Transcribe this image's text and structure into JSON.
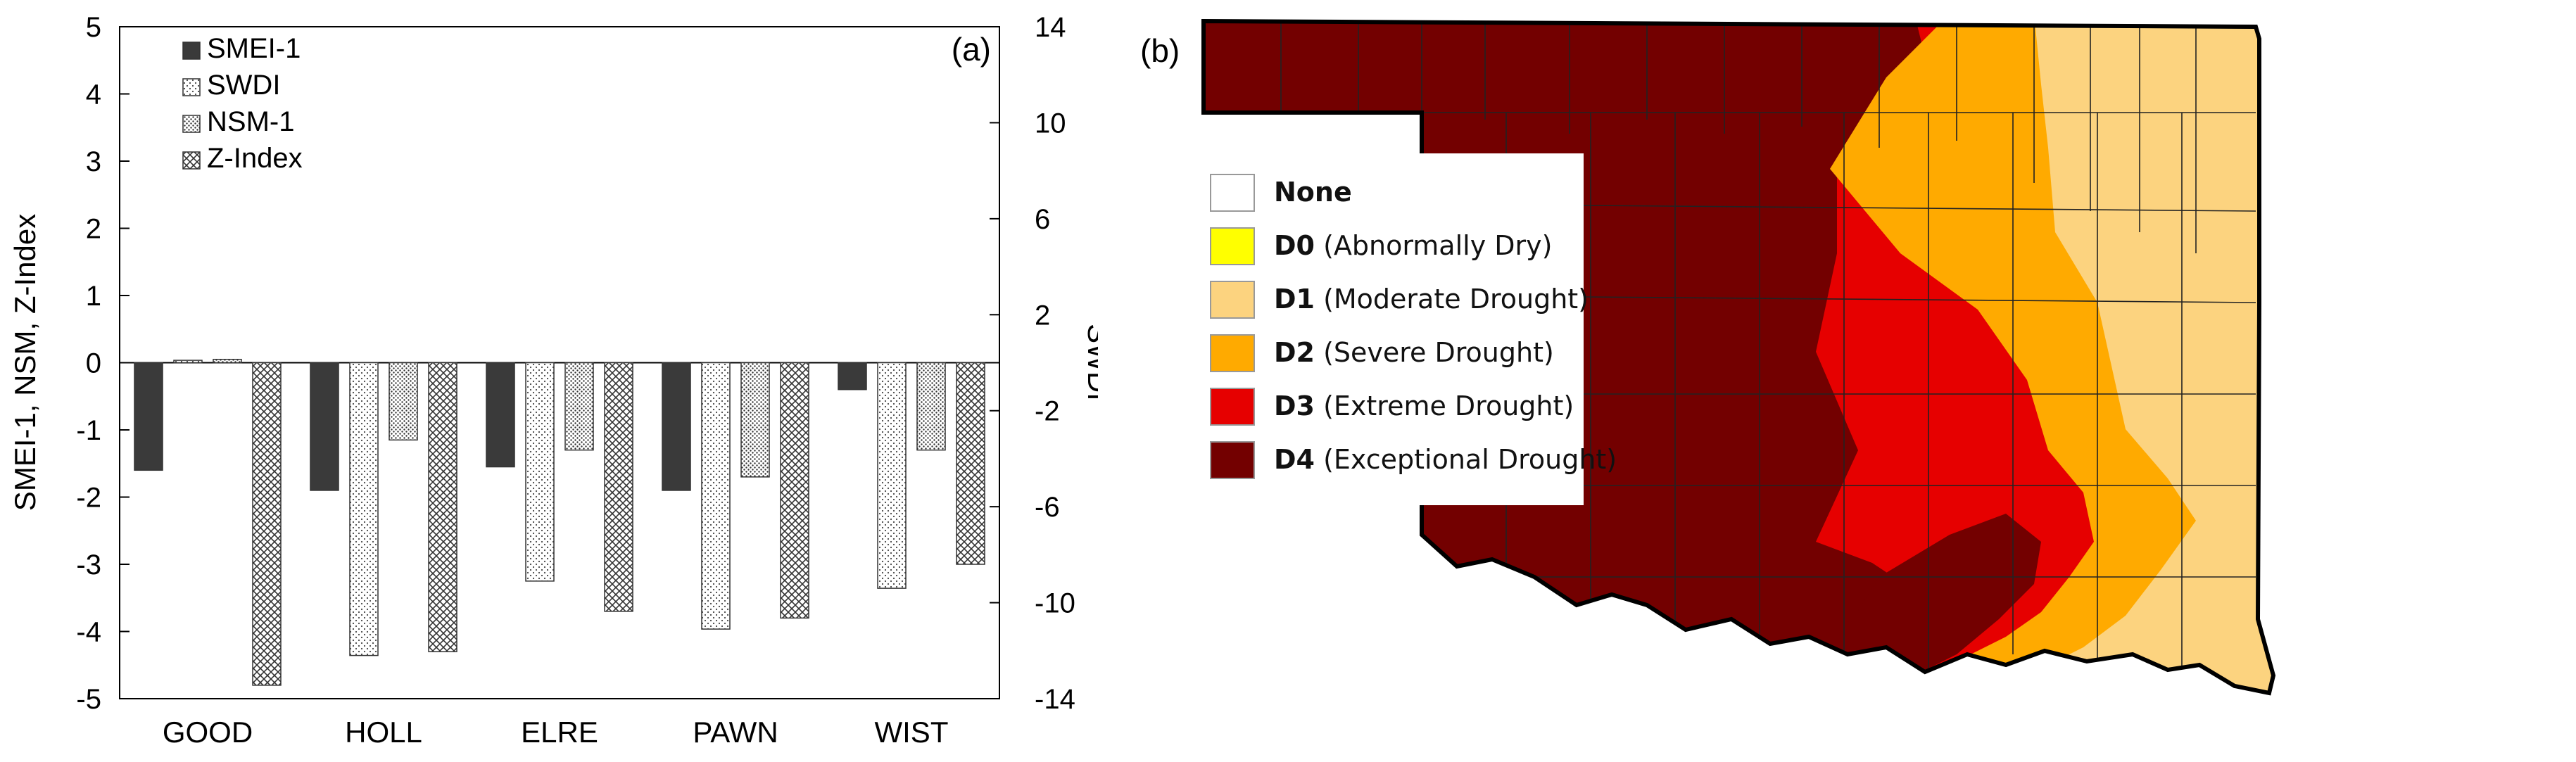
{
  "chart_data": [
    {
      "type": "bar",
      "panel_label": "(a)",
      "categories": [
        "GOOD",
        "HOLL",
        "ELRE",
        "PAWN",
        "WIST"
      ],
      "series": [
        {
          "name": "SMEI-1",
          "axis": "left",
          "pattern": "solid",
          "values": [
            -1.6,
            -1.9,
            -1.55,
            -1.9,
            -0.4
          ]
        },
        {
          "name": "SWDI",
          "axis": "right",
          "pattern": "dots",
          "values": [
            0.1,
            -12.2,
            -9.1,
            -11.1,
            -9.4
          ]
        },
        {
          "name": "NSM-1",
          "axis": "left",
          "pattern": "dense-dots",
          "values": [
            0.05,
            -1.15,
            -1.3,
            -1.7,
            -1.3
          ]
        },
        {
          "name": "Z-Index",
          "axis": "left",
          "pattern": "crosshatch",
          "values": [
            -4.8,
            -4.3,
            -3.7,
            -3.8,
            -3.0
          ]
        }
      ],
      "ylabel": "SMEI-1, NSM, Z-Index",
      "y2label": "SWDI",
      "ylim": [
        -5,
        5
      ],
      "y2lim": [
        -14,
        14
      ],
      "yticks": [
        "5",
        "4",
        "3",
        "2",
        "1",
        "0",
        "-1",
        "-2",
        "-3",
        "-4",
        "-5"
      ],
      "y2ticks": [
        "14",
        "10",
        "6",
        "2",
        "-2",
        "-6",
        "-10",
        "-14"
      ],
      "legend_position": "top-left"
    },
    {
      "type": "map",
      "panel_label": "(b)",
      "legend": [
        {
          "code": "None",
          "desc": "",
          "color": "#ffffff"
        },
        {
          "code": "D0",
          "desc": "(Abnormally Dry)",
          "color": "#ffff00"
        },
        {
          "code": "D1",
          "desc": "(Moderate Drought)",
          "color": "#fcd37f"
        },
        {
          "code": "D2",
          "desc": "(Severe Drought)",
          "color": "#ffaa00"
        },
        {
          "code": "D3",
          "desc": "(Extreme Drought)",
          "color": "#e60000"
        },
        {
          "code": "D4",
          "desc": "(Exceptional Drought)",
          "color": "#730000"
        }
      ]
    }
  ]
}
